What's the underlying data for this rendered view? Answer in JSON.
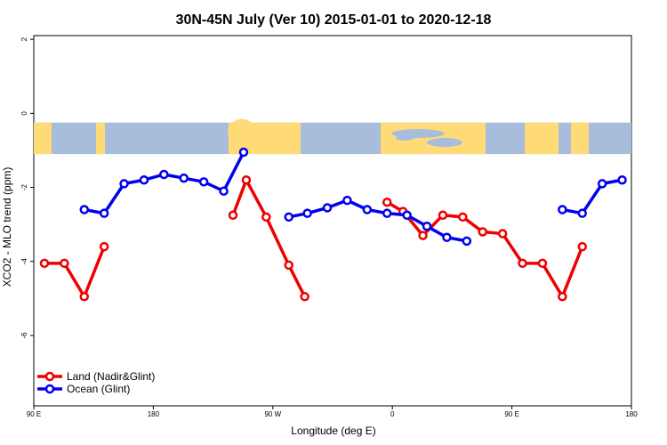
{
  "chart_data": {
    "type": "line",
    "title": "30N-45N July (Ver 10)   2015-01-01 to 2020-12-18",
    "xlabel": "Longitude (deg E)",
    "ylabel": "XCO2 - MLO trend (ppm)",
    "xlim": [
      90,
      450
    ],
    "ylim": [
      -7.9,
      2.1
    ],
    "x_ticks": [
      {
        "value": 90,
        "label": "90 E"
      },
      {
        "value": 180,
        "label": "180"
      },
      {
        "value": 270,
        "label": "90 W"
      },
      {
        "value": 360,
        "label": "0"
      },
      {
        "value": 450,
        "label": "90 E"
      },
      {
        "value": 540,
        "label": "180"
      }
    ],
    "y_ticks": [
      {
        "value": 2,
        "label": "2"
      },
      {
        "value": 0,
        "label": "0"
      },
      {
        "value": -2,
        "label": "-2"
      },
      {
        "value": -4,
        "label": "-4"
      },
      {
        "value": -6,
        "label": "-6"
      }
    ],
    "map_strip": {
      "ymin": -1.1,
      "ymax": -0.25,
      "land_color": "#ffdb77",
      "ocean_color": "#a8bcdc"
    },
    "legend_position": "bottom-left",
    "series": [
      {
        "name": "Land (Nadir&Glint)",
        "color": "#ee0000",
        "segments": [
          [
            [
              98,
              -4.05
            ],
            [
              113,
              -4.05
            ],
            [
              128,
              -4.95
            ],
            [
              143,
              -3.6
            ]
          ],
          [
            [
              240,
              -2.75
            ],
            [
              250,
              -1.8
            ],
            [
              265,
              -2.8
            ],
            [
              282,
              -4.1
            ],
            [
              294,
              -4.95
            ]
          ],
          [
            [
              356,
              -2.4
            ],
            [
              368,
              -2.65
            ],
            [
              383,
              -3.3
            ],
            [
              398,
              -2.75
            ],
            [
              413,
              -2.8
            ],
            [
              428,
              -3.2
            ],
            [
              443,
              -3.25
            ],
            [
              458,
              -4.05
            ],
            [
              473,
              -4.05
            ],
            [
              488,
              -4.95
            ],
            [
              503,
              -3.6
            ]
          ]
        ]
      },
      {
        "name": "Ocean (Glint)",
        "color": "#0000ee",
        "segments": [
          [
            [
              128,
              -2.6
            ],
            [
              143,
              -2.7
            ],
            [
              158,
              -1.9
            ],
            [
              173,
              -1.8
            ],
            [
              188,
              -1.65
            ],
            [
              203,
              -1.75
            ],
            [
              218,
              -1.85
            ],
            [
              233,
              -2.1
            ],
            [
              248,
              -1.05
            ]
          ],
          [
            [
              282,
              -2.8
            ],
            [
              296,
              -2.7
            ],
            [
              311,
              -2.55
            ],
            [
              326,
              -2.35
            ],
            [
              341,
              -2.6
            ],
            [
              356,
              -2.7
            ],
            [
              371,
              -2.75
            ],
            [
              386,
              -3.05
            ],
            [
              401,
              -3.35
            ],
            [
              416,
              -3.45
            ]
          ]
        ]
      }
    ],
    "ocean_segments_tail": [
      [
        [
          488,
          -2.6
        ],
        [
          503,
          -2.7
        ],
        [
          518,
          -1.9
        ],
        [
          533,
          -1.8
        ]
      ]
    ]
  }
}
